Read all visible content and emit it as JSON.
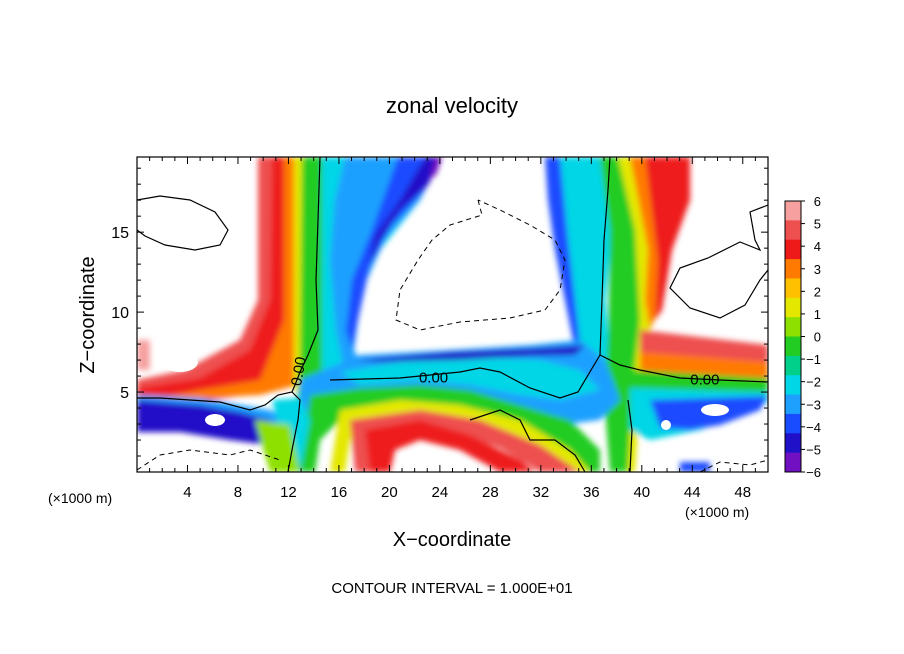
{
  "chart_data": {
    "type": "heatmap",
    "title": "zonal velocity",
    "xlabel": "X−coordinate",
    "ylabel": "Z−coordinate",
    "x_unit_left": "(×1000 m)",
    "x_unit_right": "(×1000 m)",
    "footer": "CONTOUR INTERVAL = 1.000E+01",
    "xlim": [
      0,
      50
    ],
    "ylim": [
      0,
      19.7
    ],
    "x_ticks": [
      4,
      8,
      12,
      16,
      20,
      24,
      28,
      32,
      36,
      40,
      44,
      48
    ],
    "x_tick_labels": [
      "4",
      "8",
      "12",
      "16",
      "20",
      "24",
      "28",
      "32",
      "36",
      "40",
      "44",
      "48"
    ],
    "y_ticks": [
      5,
      10,
      15
    ],
    "y_tick_labels": [
      "5",
      "10",
      "15"
    ],
    "contour_labels": [
      {
        "text": "0.00",
        "x": 12.8,
        "z": 6.3
      },
      {
        "text": "0.00",
        "x": 23.5,
        "z": 5.9
      },
      {
        "text": "0.00",
        "x": 45.0,
        "z": 5.8
      }
    ],
    "colorbar": {
      "levels": [
        6,
        5,
        4,
        3,
        2,
        1,
        0,
        -1,
        -2,
        -3,
        -4,
        -5,
        -6
      ],
      "labels": [
        "6",
        "5",
        "4",
        "3",
        "2",
        "1",
        "0",
        "−1",
        "−2",
        "−3",
        "−4",
        "−5",
        "−6"
      ],
      "colors": [
        "#f6a0a0",
        "#ee5050",
        "#ee1a1a",
        "#ff7a00",
        "#ffc000",
        "#e4e800",
        "#8ee000",
        "#22cc22",
        "#00d08a",
        "#00d6e6",
        "#1ea0ff",
        "#1a4cff",
        "#2010c8",
        "#7010c0"
      ]
    },
    "contour_interval": 10.0
  }
}
